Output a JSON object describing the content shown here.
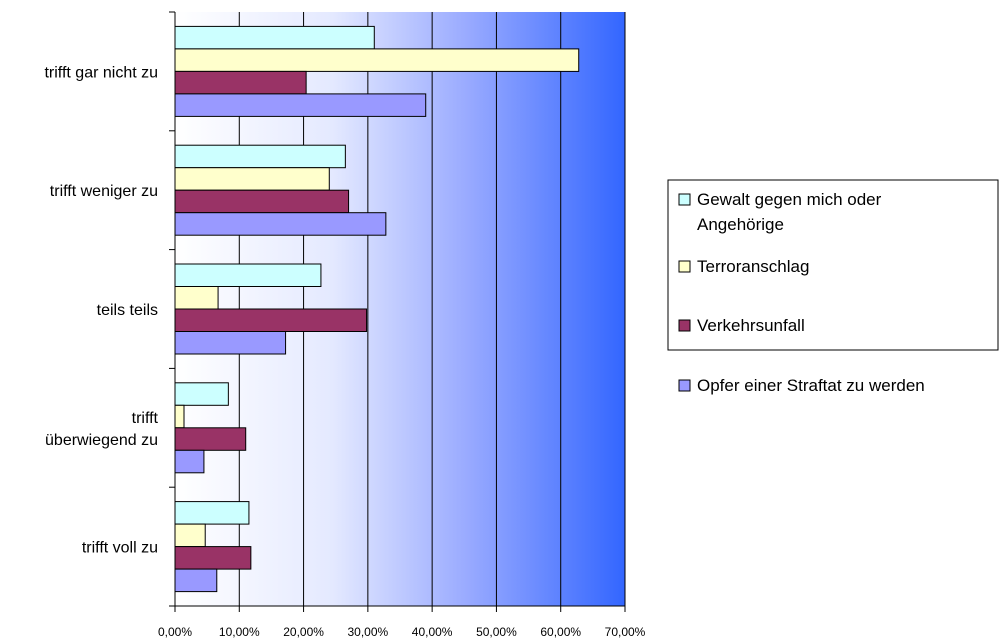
{
  "chart_data": {
    "type": "bar",
    "orientation": "horizontal",
    "categories": [
      [
        "trifft gar nicht zu"
      ],
      [
        "trifft weniger zu"
      ],
      [
        "teils teils"
      ],
      [
        "trifft",
        "überwiegend zu"
      ],
      [
        "trifft voll zu"
      ]
    ],
    "series": [
      {
        "name": [
          "Gewalt gegen mich oder",
          "Angehörige"
        ],
        "color": "#ccffff",
        "values": [
          31.0,
          26.5,
          22.7,
          8.3,
          11.5
        ]
      },
      {
        "name": [
          "Terroranschlag"
        ],
        "color": "#ffffcc",
        "values": [
          62.8,
          24.0,
          6.7,
          1.4,
          4.7
        ]
      },
      {
        "name": [
          "Verkehrsunfall"
        ],
        "color": "#993366",
        "values": [
          20.4,
          27.0,
          29.8,
          11.0,
          11.8
        ]
      },
      {
        "name": [
          "Opfer einer Straftat zu werden"
        ],
        "color": "#9999ff",
        "values": [
          39.0,
          32.8,
          17.2,
          4.5,
          6.5
        ]
      }
    ],
    "x_ticks": [
      "0,00%",
      "10,00%",
      "20,00%",
      "30,00%",
      "40,00%",
      "50,00%",
      "60,00%",
      "70,00%"
    ],
    "xlim": [
      0,
      70
    ],
    "grid": true,
    "legend": "right",
    "background_gradient": [
      "#ffffff",
      "#3366ff"
    ]
  }
}
